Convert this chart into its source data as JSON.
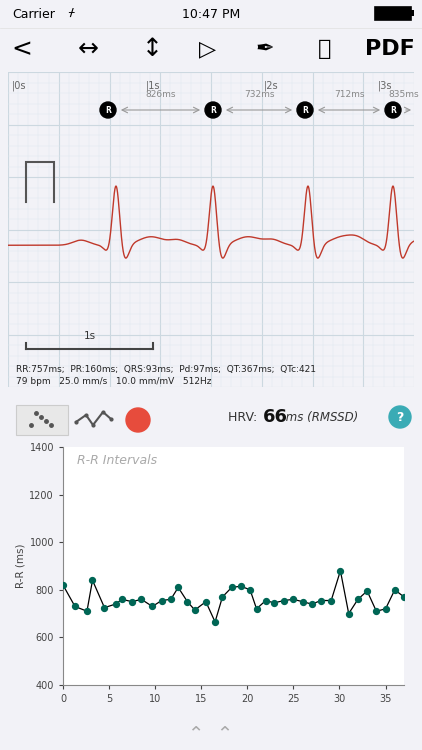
{
  "bg_color": "#f2f2f7",
  "ecg_panel_bg": "#eef5fb",
  "hrv_panel_bg": "#ffffff",
  "ecg_time_labels": [
    "0s",
    "1s",
    "2s",
    "3s"
  ],
  "rr_labels": [
    "826ms",
    "732ms",
    "712ms",
    "835ms"
  ],
  "ecg_stats": "RR:757ms;  PR:160ms;  QRS:93ms;  Pd:97ms;  QT:367ms;  QTc:421",
  "ecg_stats2": "79 bpm   25.0 mm/s   10.0 mm/mV   512Hz",
  "scale_label": "1s",
  "hrv_value": "66",
  "hrv_unit": "ms (RMSSD)",
  "chart_title": "R-R Intervals",
  "ylabel": "R-R (ms)",
  "xlim": [
    0.0,
    37.0
  ],
  "ylim": [
    400.0,
    1400.0
  ],
  "xticks": [
    0.0,
    5.0,
    10.0,
    15.0,
    20.0,
    25.0,
    30.0,
    35.0
  ],
  "yticks": [
    400.0,
    600.0,
    800.0,
    1000.0,
    1200.0,
    1400.0
  ],
  "rr_x": [
    0.0,
    1.3,
    2.6,
    3.2,
    4.5,
    5.7,
    6.4,
    7.5,
    8.5,
    9.7,
    10.7,
    11.7,
    12.5,
    13.5,
    14.3,
    15.5,
    16.5,
    17.3,
    18.3,
    19.3,
    20.3,
    21.0,
    22.0,
    22.9,
    24.0,
    25.0,
    26.0,
    27.0,
    28.0,
    29.1,
    30.1,
    31.0,
    32.0,
    33.0,
    34.0,
    35.0,
    36.0,
    37.0
  ],
  "rr_y": [
    820,
    730,
    710,
    840,
    725,
    740,
    760,
    750,
    760,
    730,
    755,
    760,
    810,
    750,
    715,
    750,
    665,
    770,
    810,
    815,
    800,
    720,
    755,
    745,
    755,
    760,
    750,
    740,
    755,
    755,
    880,
    700,
    760,
    795,
    710,
    720,
    800,
    770
  ],
  "line_color": "#000000",
  "dot_color": "#006655",
  "ecg_color": "#c0392b",
  "grid_major": "#ccd8e0",
  "grid_minor": "#dde8ef",
  "panel_border": "#b0ccd8",
  "status_bg": "#ffffff",
  "toolbar_bg": "#ffffff"
}
